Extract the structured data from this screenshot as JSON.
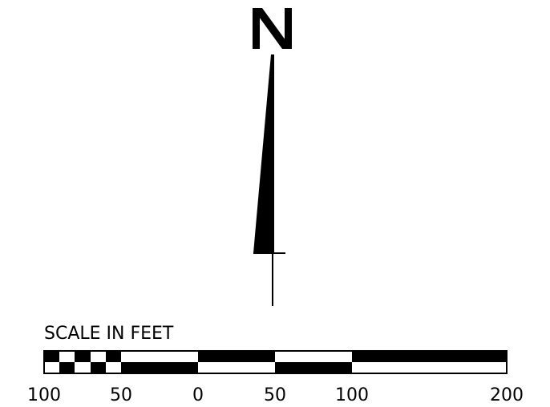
{
  "north_arrow": {
    "letter": "N"
  },
  "scale_bar": {
    "title": "SCALE IN FEET",
    "units": "feet",
    "tick_labels": [
      "100",
      "50",
      "0",
      "50",
      "100",
      "200"
    ]
  },
  "colors": {
    "ink": "#000000",
    "paper": "#ffffff"
  }
}
